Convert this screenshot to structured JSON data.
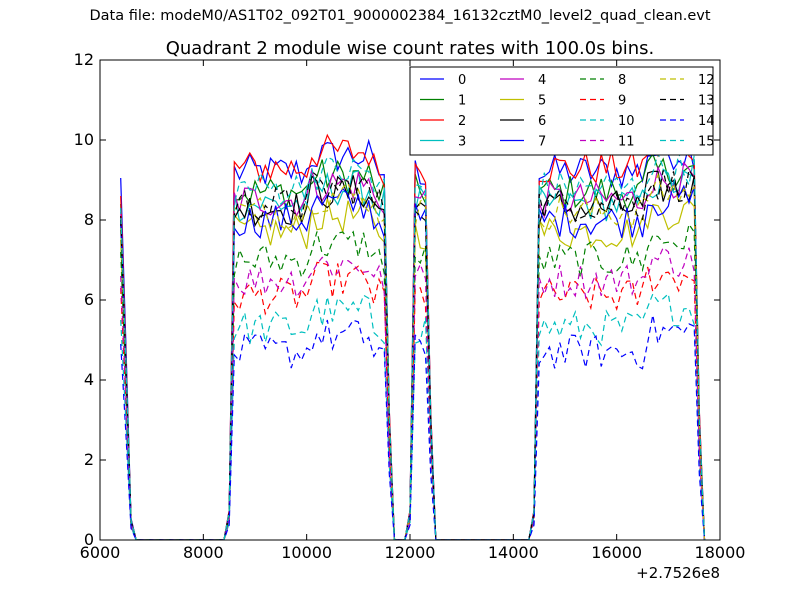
{
  "figure": {
    "suptitle": "Data file: modeM0/AS1T02_092T01_9000002384_16132cztM0_level2_quad_clean.evt"
  },
  "chart_data": {
    "type": "line",
    "title": "Quadrant 2 module wise count rates with 100.0s bins.",
    "xlabel": "",
    "ylabel": "",
    "x_offset_label": "+2.7526e8",
    "xlim": [
      6000,
      18000
    ],
    "ylim": [
      0,
      12
    ],
    "xticks": [
      6000,
      8000,
      10000,
      12000,
      14000,
      16000,
      18000
    ],
    "yticks": [
      0,
      2,
      4,
      6,
      8,
      10,
      12
    ],
    "grid": false,
    "legend_position": "top-right",
    "legend_columns": 4,
    "segments": [
      {
        "start": 6400,
        "end": 6700
      },
      {
        "start": 8400,
        "end": 11700
      },
      {
        "start": 11900,
        "end": 12500
      },
      {
        "start": 14300,
        "end": 17700
      }
    ],
    "series": [
      {
        "name": "0",
        "color": "#0000ff",
        "style": "solid",
        "level": 9.2,
        "start_value": 9.05
      },
      {
        "name": "1",
        "color": "#008000",
        "style": "solid",
        "level": 8.7,
        "start_value": 8.4
      },
      {
        "name": "2",
        "color": "#ff0000",
        "style": "solid",
        "level": 9.3,
        "start_value": 8.6
      },
      {
        "name": "3",
        "color": "#00bfbf",
        "style": "solid",
        "level": 8.4,
        "start_value": 8.0
      },
      {
        "name": "4",
        "color": "#bf00bf",
        "style": "solid",
        "level": 8.5,
        "start_value": 8.2
      },
      {
        "name": "5",
        "color": "#bfbf00",
        "style": "solid",
        "level": 7.7,
        "start_value": 7.5
      },
      {
        "name": "6",
        "color": "#000000",
        "style": "solid",
        "level": 8.3,
        "start_value": 8.1
      },
      {
        "name": "7",
        "color": "#0000ff",
        "style": "solid",
        "level": 8.0,
        "start_value": 7.9
      },
      {
        "name": "8",
        "color": "#008000",
        "style": "dashed",
        "level": 7.0,
        "start_value": 7.2
      },
      {
        "name": "9",
        "color": "#ff0000",
        "style": "dashed",
        "level": 6.1,
        "start_value": 6.3
      },
      {
        "name": "10",
        "color": "#00bfbf",
        "style": "dashed",
        "level": 5.3,
        "start_value": 5.5
      },
      {
        "name": "11",
        "color": "#bf00bf",
        "style": "dashed",
        "level": 6.5,
        "start_value": 6.6
      },
      {
        "name": "12",
        "color": "#bfbf00",
        "style": "dashed",
        "level": 8.2,
        "start_value": 7.8
      },
      {
        "name": "13",
        "color": "#000000",
        "style": "dashed",
        "level": 8.4,
        "start_value": 8.0
      },
      {
        "name": "14",
        "color": "#0000ff",
        "style": "dashed",
        "level": 4.7,
        "start_value": 4.9
      },
      {
        "name": "15",
        "color": "#00bfbf",
        "style": "dashed",
        "level": 8.8,
        "start_value": 8.3
      }
    ]
  }
}
